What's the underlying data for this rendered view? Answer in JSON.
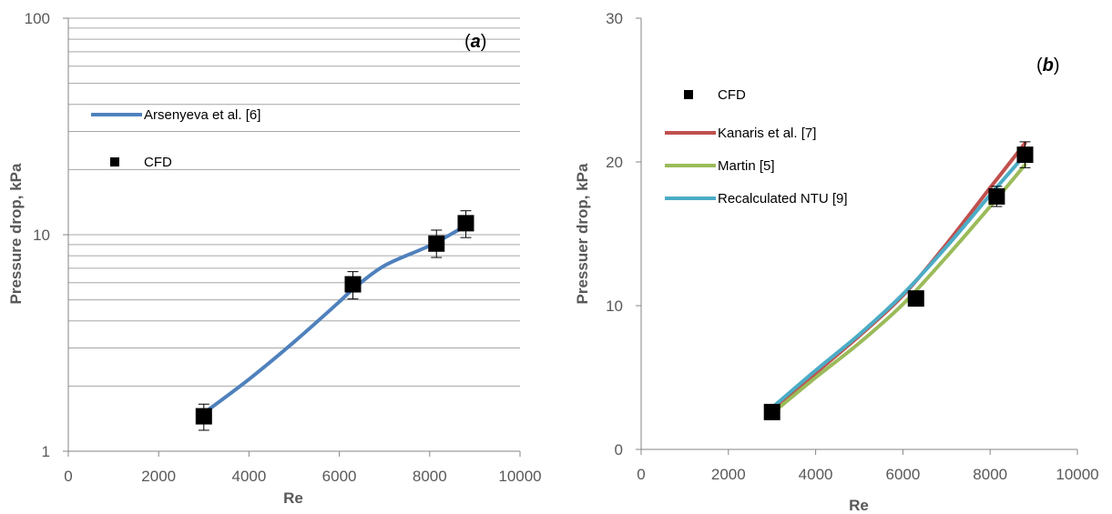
{
  "chart_data": [
    {
      "type": "line",
      "panel_label": "a",
      "title": "",
      "xlabel": "Re",
      "ylabel": "Pressure drop, kPa",
      "xlim": [
        0,
        10000
      ],
      "ylim": [
        1,
        100
      ],
      "y_scale": "log",
      "xticks": [
        "0",
        "2000",
        "4000",
        "6000",
        "8000",
        "10000"
      ],
      "yticks": [
        {
          "label": "1",
          "value": 1
        },
        {
          "label": "10",
          "value": 10
        },
        {
          "label": "100",
          "value": 100
        }
      ],
      "grid": "horizontal log gridlines",
      "legend_position": "left",
      "series": [
        {
          "name": "Arsenyeva et al. [6]",
          "kind": "line",
          "color": "#4f81bd",
          "x": [
            3000,
            4000,
            5000,
            6000,
            6300,
            7000,
            8000,
            8800
          ],
          "y": [
            1.5,
            2.15,
            3.2,
            4.9,
            5.6,
            7.2,
            8.9,
            11.0
          ]
        },
        {
          "name": "CFD",
          "kind": "marker",
          "color": "#000000",
          "x": [
            3000,
            6300,
            8150,
            8800
          ],
          "y": [
            1.45,
            5.9,
            9.1,
            11.3
          ],
          "err_low": [
            1.25,
            5.05,
            7.85,
            9.7
          ],
          "err_high": [
            1.65,
            6.75,
            10.5,
            12.9
          ]
        }
      ]
    },
    {
      "type": "line",
      "panel_label": "b",
      "title": "",
      "xlabel": "Re",
      "ylabel": "Pressuer drop, kPa",
      "xlim": [
        0,
        10000
      ],
      "ylim": [
        0,
        30
      ],
      "y_scale": "linear",
      "xticks": [
        "0",
        "2000",
        "4000",
        "6000",
        "8000",
        "10000"
      ],
      "yticks": [
        {
          "label": "0",
          "value": 0
        },
        {
          "label": "10",
          "value": 10
        },
        {
          "label": "20",
          "value": 20
        },
        {
          "label": "30",
          "value": 30
        }
      ],
      "grid": "none",
      "legend_position": "left",
      "series": [
        {
          "name": "CFD",
          "kind": "marker",
          "color": "#000000",
          "x": [
            3000,
            6300,
            8150,
            8800
          ],
          "y": [
            2.6,
            10.5,
            17.6,
            20.5
          ],
          "err_low": [
            2.4,
            10.1,
            16.9,
            19.6
          ],
          "err_high": [
            2.8,
            10.9,
            18.3,
            21.4
          ]
        },
        {
          "name": "Kanaris et al. [7]",
          "kind": "line",
          "color": "#c0504d",
          "x": [
            3000,
            4000,
            5000,
            6000,
            7000,
            8000,
            8800
          ],
          "y": [
            2.6,
            5.3,
            7.9,
            10.7,
            14.3,
            18.2,
            21.3
          ]
        },
        {
          "name": "Martin [5]",
          "kind": "line",
          "color": "#9bbb59",
          "x": [
            3000,
            4000,
            5000,
            6000,
            7000,
            8000,
            8800
          ],
          "y": [
            2.5,
            5.0,
            7.4,
            10.1,
            13.4,
            16.9,
            19.8
          ]
        },
        {
          "name": "Recalculated NTU [9]",
          "kind": "line",
          "color": "#4bacc6",
          "x": [
            3000,
            4000,
            5000,
            6000,
            7000,
            8000,
            8800
          ],
          "y": [
            2.9,
            5.5,
            8.0,
            10.8,
            14.1,
            17.7,
            20.5
          ]
        }
      ]
    }
  ]
}
